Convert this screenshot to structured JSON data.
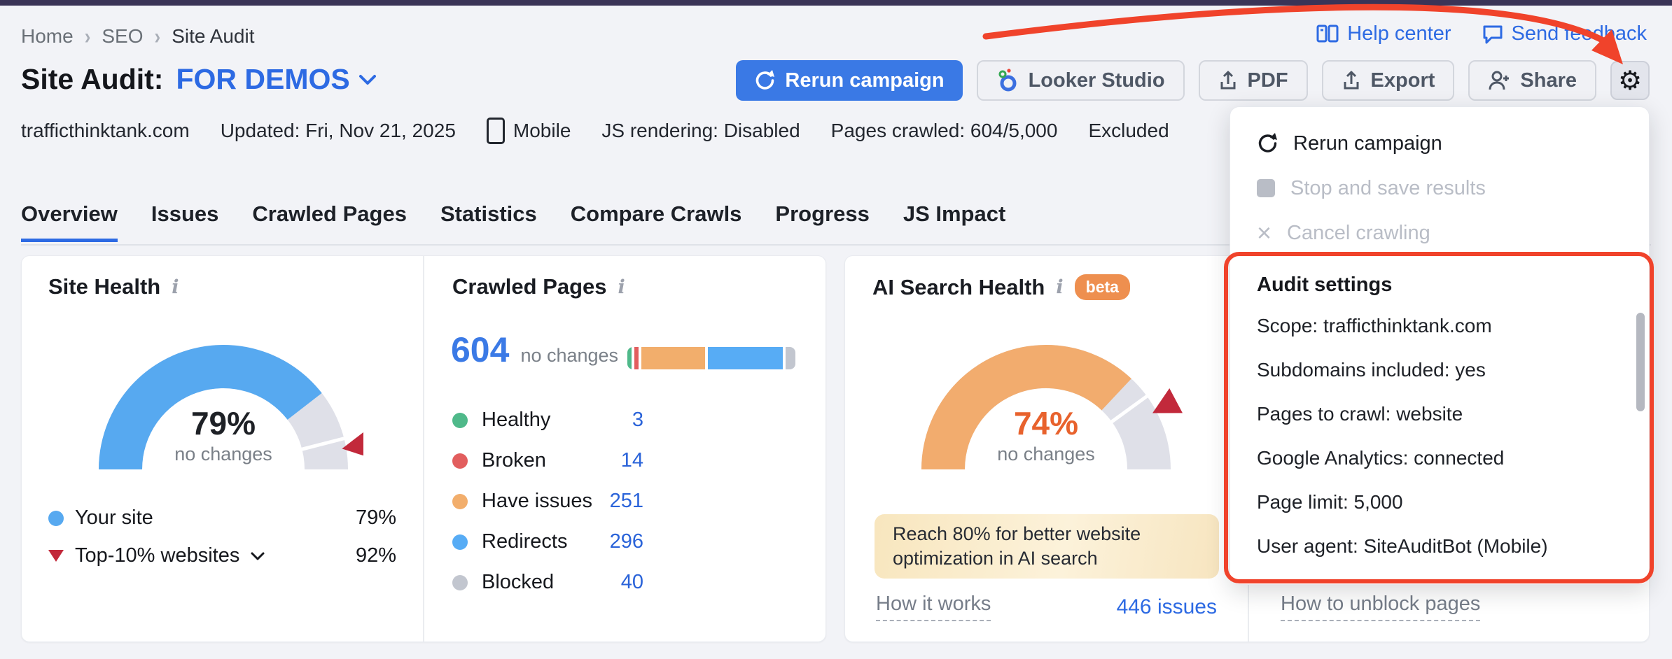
{
  "breadcrumb": {
    "items": [
      "Home",
      "SEO",
      "Site Audit"
    ]
  },
  "toplinks": {
    "help": "Help center",
    "feedback": "Send feedback"
  },
  "header": {
    "title": "Site Audit:",
    "campaign": "FOR DEMOS",
    "rerun": "Rerun campaign",
    "looker": "Looker Studio",
    "pdf": "PDF",
    "export": "Export",
    "share": "Share"
  },
  "meta": {
    "domain": "trafficthinktank.com",
    "updated": "Updated: Fri, Nov 21, 2025",
    "device": "Mobile",
    "js_rendering": "JS rendering: Disabled",
    "pages_crawled": "Pages crawled: 604/5,000",
    "excluded": "Excluded"
  },
  "tabs": {
    "items": [
      "Overview",
      "Issues",
      "Crawled Pages",
      "Statistics",
      "Compare Crawls",
      "Progress",
      "JS Impact"
    ],
    "active": "Overview"
  },
  "site_health": {
    "title": "Site Health",
    "percent": "79%",
    "change": "no changes",
    "value": 79,
    "divider": 92,
    "marker": 94.5,
    "color": "#57A9F0",
    "track_color": "#DFE0E8",
    "marker_color": "#C2293B",
    "legend": [
      {
        "label": "Your site",
        "value": "79%",
        "swatch_color": "#57A9F0"
      },
      {
        "label": "Top-10% websites",
        "value": "92%",
        "swatch_color": "#C2293B"
      }
    ]
  },
  "crawled_pages": {
    "title": "Crawled Pages",
    "total": "604",
    "change": "no changes",
    "bar": [
      {
        "name": "healthy",
        "value": 3,
        "color": "#4FB98A"
      },
      {
        "name": "broken",
        "value": 14,
        "color": "#E25E5E"
      },
      {
        "name": "have-issues",
        "value": 251,
        "color": "#F2AE6C"
      },
      {
        "name": "redirects",
        "value": 296,
        "color": "#57ACF5"
      },
      {
        "name": "blocked",
        "value": 40,
        "color": "#C2C6CF"
      }
    ],
    "legend": [
      {
        "label": "Healthy",
        "value": "3"
      },
      {
        "label": "Broken",
        "value": "14"
      },
      {
        "label": "Have issues",
        "value": "251"
      },
      {
        "label": "Redirects",
        "value": "296"
      },
      {
        "label": "Blocked",
        "value": "40"
      }
    ]
  },
  "ai_search_health": {
    "title": "AI Search Health",
    "badge": "beta",
    "percent": "74%",
    "change": "no changes",
    "value": 74,
    "divider": 80,
    "marker": 84.5,
    "color": "#F2AC6E",
    "track_color": "#DFE0E8",
    "marker_color": "#C2293B",
    "percent_color": "#E8622D",
    "tip": "Reach 80% for better website optimization in AI search",
    "how_it_works": "How it works",
    "issues": "446 issues"
  },
  "blocked_card": {
    "link": "How to unblock pages"
  },
  "menu": {
    "rerun": "Rerun campaign",
    "stop": "Stop and save results",
    "cancel": "Cancel crawling",
    "settings_title": "Audit settings",
    "settings": [
      "Scope: trafficthinktank.com",
      "Subdomains included: yes",
      "Pages to crawl: website",
      "Google Analytics: connected",
      "Page limit: 5,000",
      "User agent: SiteAuditBot (Mobile)"
    ]
  },
  "colors": {
    "accent_blue": "#2D6AE3",
    "annotation_red": "#F0432B"
  },
  "chart_data": [
    {
      "type": "gauge",
      "title": "Site Health",
      "value": 79,
      "benchmark": 92,
      "unit": "%",
      "note": "no changes"
    },
    {
      "type": "bar",
      "title": "Crawled Pages",
      "categories": [
        "Healthy",
        "Broken",
        "Have issues",
        "Redirects",
        "Blocked"
      ],
      "values": [
        3,
        14,
        251,
        296,
        40
      ],
      "total": 604
    },
    {
      "type": "gauge",
      "title": "AI Search Health",
      "value": 74,
      "goal": 80,
      "unit": "%",
      "note": "no changes"
    }
  ]
}
